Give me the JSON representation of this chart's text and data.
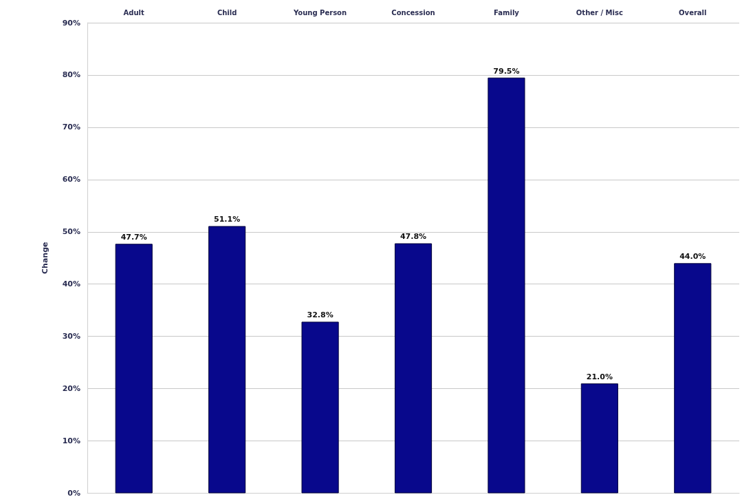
{
  "chart_data": {
    "type": "bar",
    "ylabel": "Change",
    "categories": [
      "Adult",
      "Child",
      "Young Person",
      "Concession",
      "Family",
      "Other / Misc",
      "Overall"
    ],
    "values": [
      47.7,
      51.1,
      32.8,
      47.8,
      79.5,
      21.0,
      44.0
    ],
    "value_labels": [
      "47.7%",
      "51.1%",
      "32.8%",
      "47.8%",
      "79.5%",
      "21.0%",
      "44.0%"
    ],
    "color": "#08088c",
    "ylim": [
      0,
      90
    ],
    "yticks": [
      {
        "value": 0,
        "label": "0%"
      },
      {
        "value": 10,
        "label": "10%"
      },
      {
        "value": 20,
        "label": "20%"
      },
      {
        "value": 30,
        "label": "30%"
      },
      {
        "value": 40,
        "label": "40%"
      },
      {
        "value": 50,
        "label": "50%"
      },
      {
        "value": 60,
        "label": "60%"
      },
      {
        "value": 70,
        "label": "70%"
      },
      {
        "value": 80,
        "label": "80%"
      },
      {
        "value": 90,
        "label": "90%"
      }
    ],
    "grid": "y"
  }
}
